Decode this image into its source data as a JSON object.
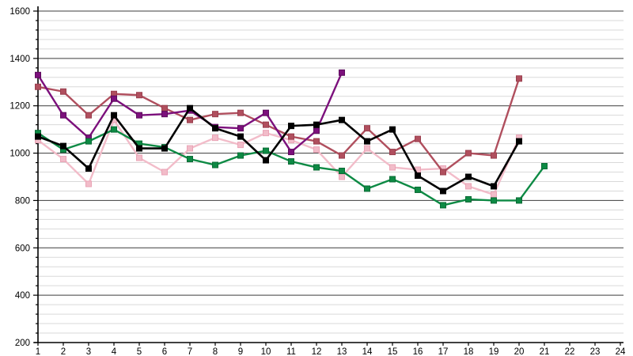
{
  "chart_data": {
    "type": "line",
    "title": "",
    "xlabel": "",
    "ylabel": "",
    "legend": "none",
    "grid": {
      "major_on": true,
      "minor_on": true,
      "major_color": "#3c3c3c",
      "minor_color": "#d9d9d9"
    },
    "axis_color": "#000000",
    "background": "#ffffff",
    "xlim": [
      1,
      24
    ],
    "ylim": [
      200,
      1600
    ],
    "y_major_step": 200,
    "y_minor_step": 40,
    "x_tick_labels": [
      "1",
      "2",
      "3",
      "4",
      "5",
      "6",
      "7",
      "8",
      "9",
      "10",
      "11",
      "12",
      "13",
      "14",
      "15",
      "16",
      "17",
      "18",
      "19",
      "20",
      "21",
      "22",
      "23",
      "24"
    ],
    "y_tick_labels": [
      "200",
      "400",
      "600",
      "800",
      "1000",
      "1200",
      "1400",
      "1600"
    ],
    "series": [
      {
        "name": "pink",
        "color": "#f2bcc9",
        "marker_edge": "#eaa4b6",
        "x_start": 1,
        "values": [
          1055,
          975,
          870,
          1140,
          980,
          920,
          1020,
          1065,
          1035,
          1085,
          1055,
          1015,
          900,
          1020,
          940,
          930,
          935,
          860,
          825,
          1065
        ]
      },
      {
        "name": "maroon",
        "color": "#b04f5e",
        "marker_edge": "#9a3f4e",
        "x_start": 1,
        "values": [
          1280,
          1260,
          1160,
          1250,
          1245,
          1190,
          1140,
          1165,
          1170,
          1120,
          1070,
          1050,
          990,
          1105,
          1005,
          1060,
          920,
          1000,
          990,
          1315
        ]
      },
      {
        "name": "purple",
        "color": "#7c107c",
        "marker_edge": "#5d0b5d",
        "x_start": 1,
        "values": [
          1330,
          1160,
          1065,
          1230,
          1160,
          1165,
          1180,
          1110,
          1105,
          1170,
          1005,
          1095,
          1340
        ]
      },
      {
        "name": "green",
        "color": "#0d8a44",
        "marker_edge": "#0a6b35",
        "x_start": 1,
        "values": [
          1085,
          1015,
          1050,
          1100,
          1040,
          1025,
          975,
          950,
          990,
          1010,
          965,
          940,
          925,
          850,
          890,
          845,
          780,
          805,
          800,
          800,
          945
        ]
      },
      {
        "name": "black",
        "color": "#000000",
        "marker_edge": "#000000",
        "x_start": 1,
        "values": [
          1070,
          1030,
          935,
          1160,
          1020,
          1020,
          1190,
          1105,
          1070,
          970,
          1115,
          1120,
          1140,
          1050,
          1100,
          905,
          840,
          900,
          860,
          1050
        ]
      }
    ]
  }
}
